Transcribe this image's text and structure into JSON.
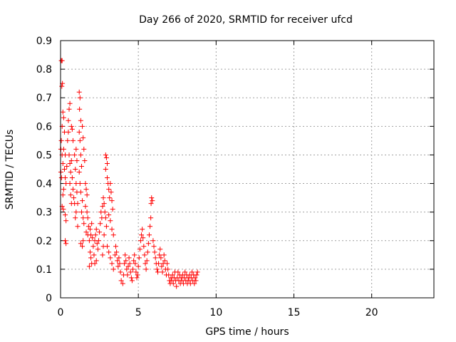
{
  "chart_data": {
    "type": "scatter",
    "title": "Day 266 of 2020, SRMTID for receiver ufcd",
    "xlabel": "GPS time / hours",
    "ylabel": "SRMTID / TECUs",
    "xlim": [
      0,
      24
    ],
    "ylim": [
      0,
      0.9
    ],
    "xticks": [
      0,
      5,
      10,
      15,
      20
    ],
    "yticks": [
      0,
      0.1,
      0.2,
      0.3,
      0.4,
      0.5,
      0.6,
      0.7,
      0.8,
      0.9
    ],
    "grid": true,
    "series": [
      {
        "name": "SRMTID",
        "marker": "+",
        "color": "#ff0000",
        "points": [
          [
            0.05,
            0.83
          ],
          [
            0.1,
            0.83
          ],
          [
            0.12,
            0.75
          ],
          [
            0.08,
            0.74
          ],
          [
            0.02,
            0.52
          ],
          [
            0.05,
            0.55
          ],
          [
            0.1,
            0.5
          ],
          [
            0.15,
            0.47
          ],
          [
            0.02,
            0.44
          ],
          [
            0.06,
            0.42
          ],
          [
            0.1,
            0.6
          ],
          [
            0.15,
            0.65
          ],
          [
            0.2,
            0.63
          ],
          [
            0.25,
            0.58
          ],
          [
            0.2,
            0.52
          ],
          [
            0.3,
            0.5
          ],
          [
            0.25,
            0.45
          ],
          [
            0.3,
            0.42
          ],
          [
            0.35,
            0.4
          ],
          [
            0.2,
            0.38
          ],
          [
            0.15,
            0.36
          ],
          [
            0.1,
            0.32
          ],
          [
            0.18,
            0.31
          ],
          [
            0.3,
            0.29
          ],
          [
            0.35,
            0.27
          ],
          [
            0.3,
            0.2
          ],
          [
            0.35,
            0.19
          ],
          [
            0.4,
            0.46
          ],
          [
            0.45,
            0.55
          ],
          [
            0.5,
            0.62
          ],
          [
            0.55,
            0.66
          ],
          [
            0.6,
            0.68
          ],
          [
            0.5,
            0.58
          ],
          [
            0.55,
            0.5
          ],
          [
            0.6,
            0.47
          ],
          [
            0.65,
            0.44
          ],
          [
            0.7,
            0.6
          ],
          [
            0.75,
            0.59
          ],
          [
            0.8,
            0.55
          ],
          [
            0.7,
            0.48
          ],
          [
            0.75,
            0.42
          ],
          [
            0.8,
            0.38
          ],
          [
            0.85,
            0.35
          ],
          [
            0.9,
            0.33
          ],
          [
            0.6,
            0.4
          ],
          [
            0.65,
            0.36
          ],
          [
            0.7,
            0.33
          ],
          [
            0.9,
            0.5
          ],
          [
            1.0,
            0.52
          ],
          [
            1.05,
            0.48
          ],
          [
            0.95,
            0.45
          ],
          [
            1.0,
            0.4
          ],
          [
            1.05,
            0.37
          ],
          [
            1.1,
            0.33
          ],
          [
            1.0,
            0.3
          ],
          [
            0.95,
            0.28
          ],
          [
            1.1,
            0.25
          ],
          [
            1.2,
            0.72
          ],
          [
            1.25,
            0.7
          ],
          [
            1.22,
            0.66
          ],
          [
            1.3,
            0.62
          ],
          [
            1.2,
            0.58
          ],
          [
            1.25,
            0.55
          ],
          [
            1.3,
            0.5
          ],
          [
            1.35,
            0.46
          ],
          [
            1.2,
            0.44
          ],
          [
            1.25,
            0.4
          ],
          [
            1.3,
            0.37
          ],
          [
            1.4,
            0.34
          ],
          [
            1.35,
            0.3
          ],
          [
            1.45,
            0.28
          ],
          [
            1.5,
            0.26
          ],
          [
            1.4,
            0.6
          ],
          [
            1.45,
            0.56
          ],
          [
            1.5,
            0.52
          ],
          [
            1.55,
            0.48
          ],
          [
            1.4,
            0.18
          ],
          [
            1.45,
            0.2
          ],
          [
            1.3,
            0.19
          ],
          [
            1.6,
            0.4
          ],
          [
            1.65,
            0.38
          ],
          [
            1.7,
            0.36
          ],
          [
            1.6,
            0.32
          ],
          [
            1.7,
            0.3
          ],
          [
            1.75,
            0.28
          ],
          [
            1.8,
            0.25
          ],
          [
            1.65,
            0.23
          ],
          [
            1.75,
            0.22
          ],
          [
            1.85,
            0.2
          ],
          [
            1.9,
            0.24
          ],
          [
            1.95,
            0.22
          ],
          [
            2.0,
            0.26
          ],
          [
            2.05,
            0.21
          ],
          [
            2.1,
            0.18
          ],
          [
            1.9,
            0.16
          ],
          [
            1.95,
            0.14
          ],
          [
            2.0,
            0.12
          ],
          [
            1.85,
            0.11
          ],
          [
            2.15,
            0.15
          ],
          [
            2.2,
            0.2
          ],
          [
            2.25,
            0.22
          ],
          [
            2.3,
            0.24
          ],
          [
            2.35,
            0.19
          ],
          [
            2.4,
            0.17
          ],
          [
            2.3,
            0.13
          ],
          [
            2.2,
            0.12
          ],
          [
            2.45,
            0.2
          ],
          [
            2.5,
            0.23
          ],
          [
            2.55,
            0.26
          ],
          [
            2.6,
            0.3
          ],
          [
            2.65,
            0.28
          ],
          [
            2.7,
            0.32
          ],
          [
            2.75,
            0.35
          ],
          [
            2.8,
            0.33
          ],
          [
            2.85,
            0.3
          ],
          [
            2.9,
            0.28
          ],
          [
            2.95,
            0.25
          ],
          [
            2.8,
            0.22
          ],
          [
            2.75,
            0.18
          ],
          [
            2.7,
            0.15
          ],
          [
            2.9,
            0.5
          ],
          [
            2.95,
            0.49
          ],
          [
            3.0,
            0.47
          ],
          [
            2.9,
            0.45
          ],
          [
            3.0,
            0.42
          ],
          [
            3.05,
            0.4
          ],
          [
            3.1,
            0.38
          ],
          [
            3.15,
            0.35
          ],
          [
            3.2,
            0.4
          ],
          [
            3.25,
            0.37
          ],
          [
            3.3,
            0.34
          ],
          [
            3.35,
            0.31
          ],
          [
            3.1,
            0.29
          ],
          [
            3.2,
            0.27
          ],
          [
            3.3,
            0.24
          ],
          [
            3.4,
            0.22
          ],
          [
            3.0,
            0.18
          ],
          [
            3.1,
            0.16
          ],
          [
            3.2,
            0.14
          ],
          [
            3.3,
            0.12
          ],
          [
            3.4,
            0.1
          ],
          [
            3.5,
            0.15
          ],
          [
            3.55,
            0.18
          ],
          [
            3.6,
            0.16
          ],
          [
            3.65,
            0.13
          ],
          [
            3.7,
            0.11
          ],
          [
            3.75,
            0.14
          ],
          [
            3.8,
            0.12
          ],
          [
            3.85,
            0.09
          ],
          [
            3.9,
            0.06
          ],
          [
            4.0,
            0.05
          ],
          [
            4.05,
            0.08
          ],
          [
            4.1,
            0.12
          ],
          [
            4.15,
            0.15
          ],
          [
            4.2,
            0.13
          ],
          [
            4.25,
            0.1
          ],
          [
            4.3,
            0.08
          ],
          [
            4.35,
            0.11
          ],
          [
            4.4,
            0.14
          ],
          [
            4.45,
            0.12
          ],
          [
            4.5,
            0.09
          ],
          [
            4.55,
            0.07
          ],
          [
            4.6,
            0.06
          ],
          [
            4.65,
            0.1
          ],
          [
            4.7,
            0.13
          ],
          [
            4.75,
            0.15
          ],
          [
            4.8,
            0.12
          ],
          [
            4.85,
            0.09
          ],
          [
            4.9,
            0.07
          ],
          [
            4.95,
            0.08
          ],
          [
            5.0,
            0.11
          ],
          [
            5.05,
            0.14
          ],
          [
            5.1,
            0.17
          ],
          [
            5.15,
            0.2
          ],
          [
            5.2,
            0.22
          ],
          [
            5.25,
            0.24
          ],
          [
            5.3,
            0.21
          ],
          [
            5.35,
            0.18
          ],
          [
            5.4,
            0.15
          ],
          [
            5.45,
            0.12
          ],
          [
            5.5,
            0.1
          ],
          [
            5.55,
            0.13
          ],
          [
            5.6,
            0.16
          ],
          [
            5.65,
            0.19
          ],
          [
            5.7,
            0.22
          ],
          [
            5.75,
            0.25
          ],
          [
            5.8,
            0.28
          ],
          [
            5.85,
            0.35
          ],
          [
            5.9,
            0.34
          ],
          [
            5.82,
            0.33
          ],
          [
            5.95,
            0.2
          ],
          [
            6.0,
            0.18
          ],
          [
            6.05,
            0.16
          ],
          [
            6.1,
            0.14
          ],
          [
            6.15,
            0.12
          ],
          [
            6.2,
            0.1
          ],
          [
            6.25,
            0.09
          ],
          [
            6.3,
            0.12
          ],
          [
            6.35,
            0.15
          ],
          [
            6.4,
            0.17
          ],
          [
            6.45,
            0.14
          ],
          [
            6.5,
            0.11
          ],
          [
            6.55,
            0.09
          ],
          [
            6.6,
            0.12
          ],
          [
            6.65,
            0.15
          ],
          [
            6.7,
            0.13
          ],
          [
            6.75,
            0.1
          ],
          [
            6.8,
            0.08
          ],
          [
            6.85,
            0.12
          ],
          [
            6.9,
            0.1
          ],
          [
            6.95,
            0.08
          ],
          [
            7.0,
            0.06
          ],
          [
            7.05,
            0.05
          ],
          [
            7.1,
            0.07
          ],
          [
            7.15,
            0.06
          ],
          [
            7.2,
            0.08
          ],
          [
            7.25,
            0.05
          ],
          [
            7.3,
            0.07
          ],
          [
            7.35,
            0.09
          ],
          [
            7.4,
            0.06
          ],
          [
            7.45,
            0.04
          ],
          [
            7.5,
            0.07
          ],
          [
            7.55,
            0.09
          ],
          [
            7.6,
            0.06
          ],
          [
            7.65,
            0.08
          ],
          [
            7.7,
            0.05
          ],
          [
            7.75,
            0.07
          ],
          [
            7.8,
            0.06
          ],
          [
            7.85,
            0.08
          ],
          [
            7.9,
            0.05
          ],
          [
            7.95,
            0.07
          ],
          [
            8.0,
            0.09
          ],
          [
            8.05,
            0.06
          ],
          [
            8.1,
            0.08
          ],
          [
            8.15,
            0.05
          ],
          [
            8.2,
            0.07
          ],
          [
            8.25,
            0.06
          ],
          [
            8.3,
            0.08
          ],
          [
            8.35,
            0.05
          ],
          [
            8.4,
            0.07
          ],
          [
            8.45,
            0.09
          ],
          [
            8.5,
            0.06
          ],
          [
            8.55,
            0.08
          ],
          [
            8.6,
            0.05
          ],
          [
            8.65,
            0.07
          ],
          [
            8.7,
            0.06
          ],
          [
            8.75,
            0.08
          ],
          [
            8.8,
            0.09
          ]
        ]
      }
    ]
  }
}
